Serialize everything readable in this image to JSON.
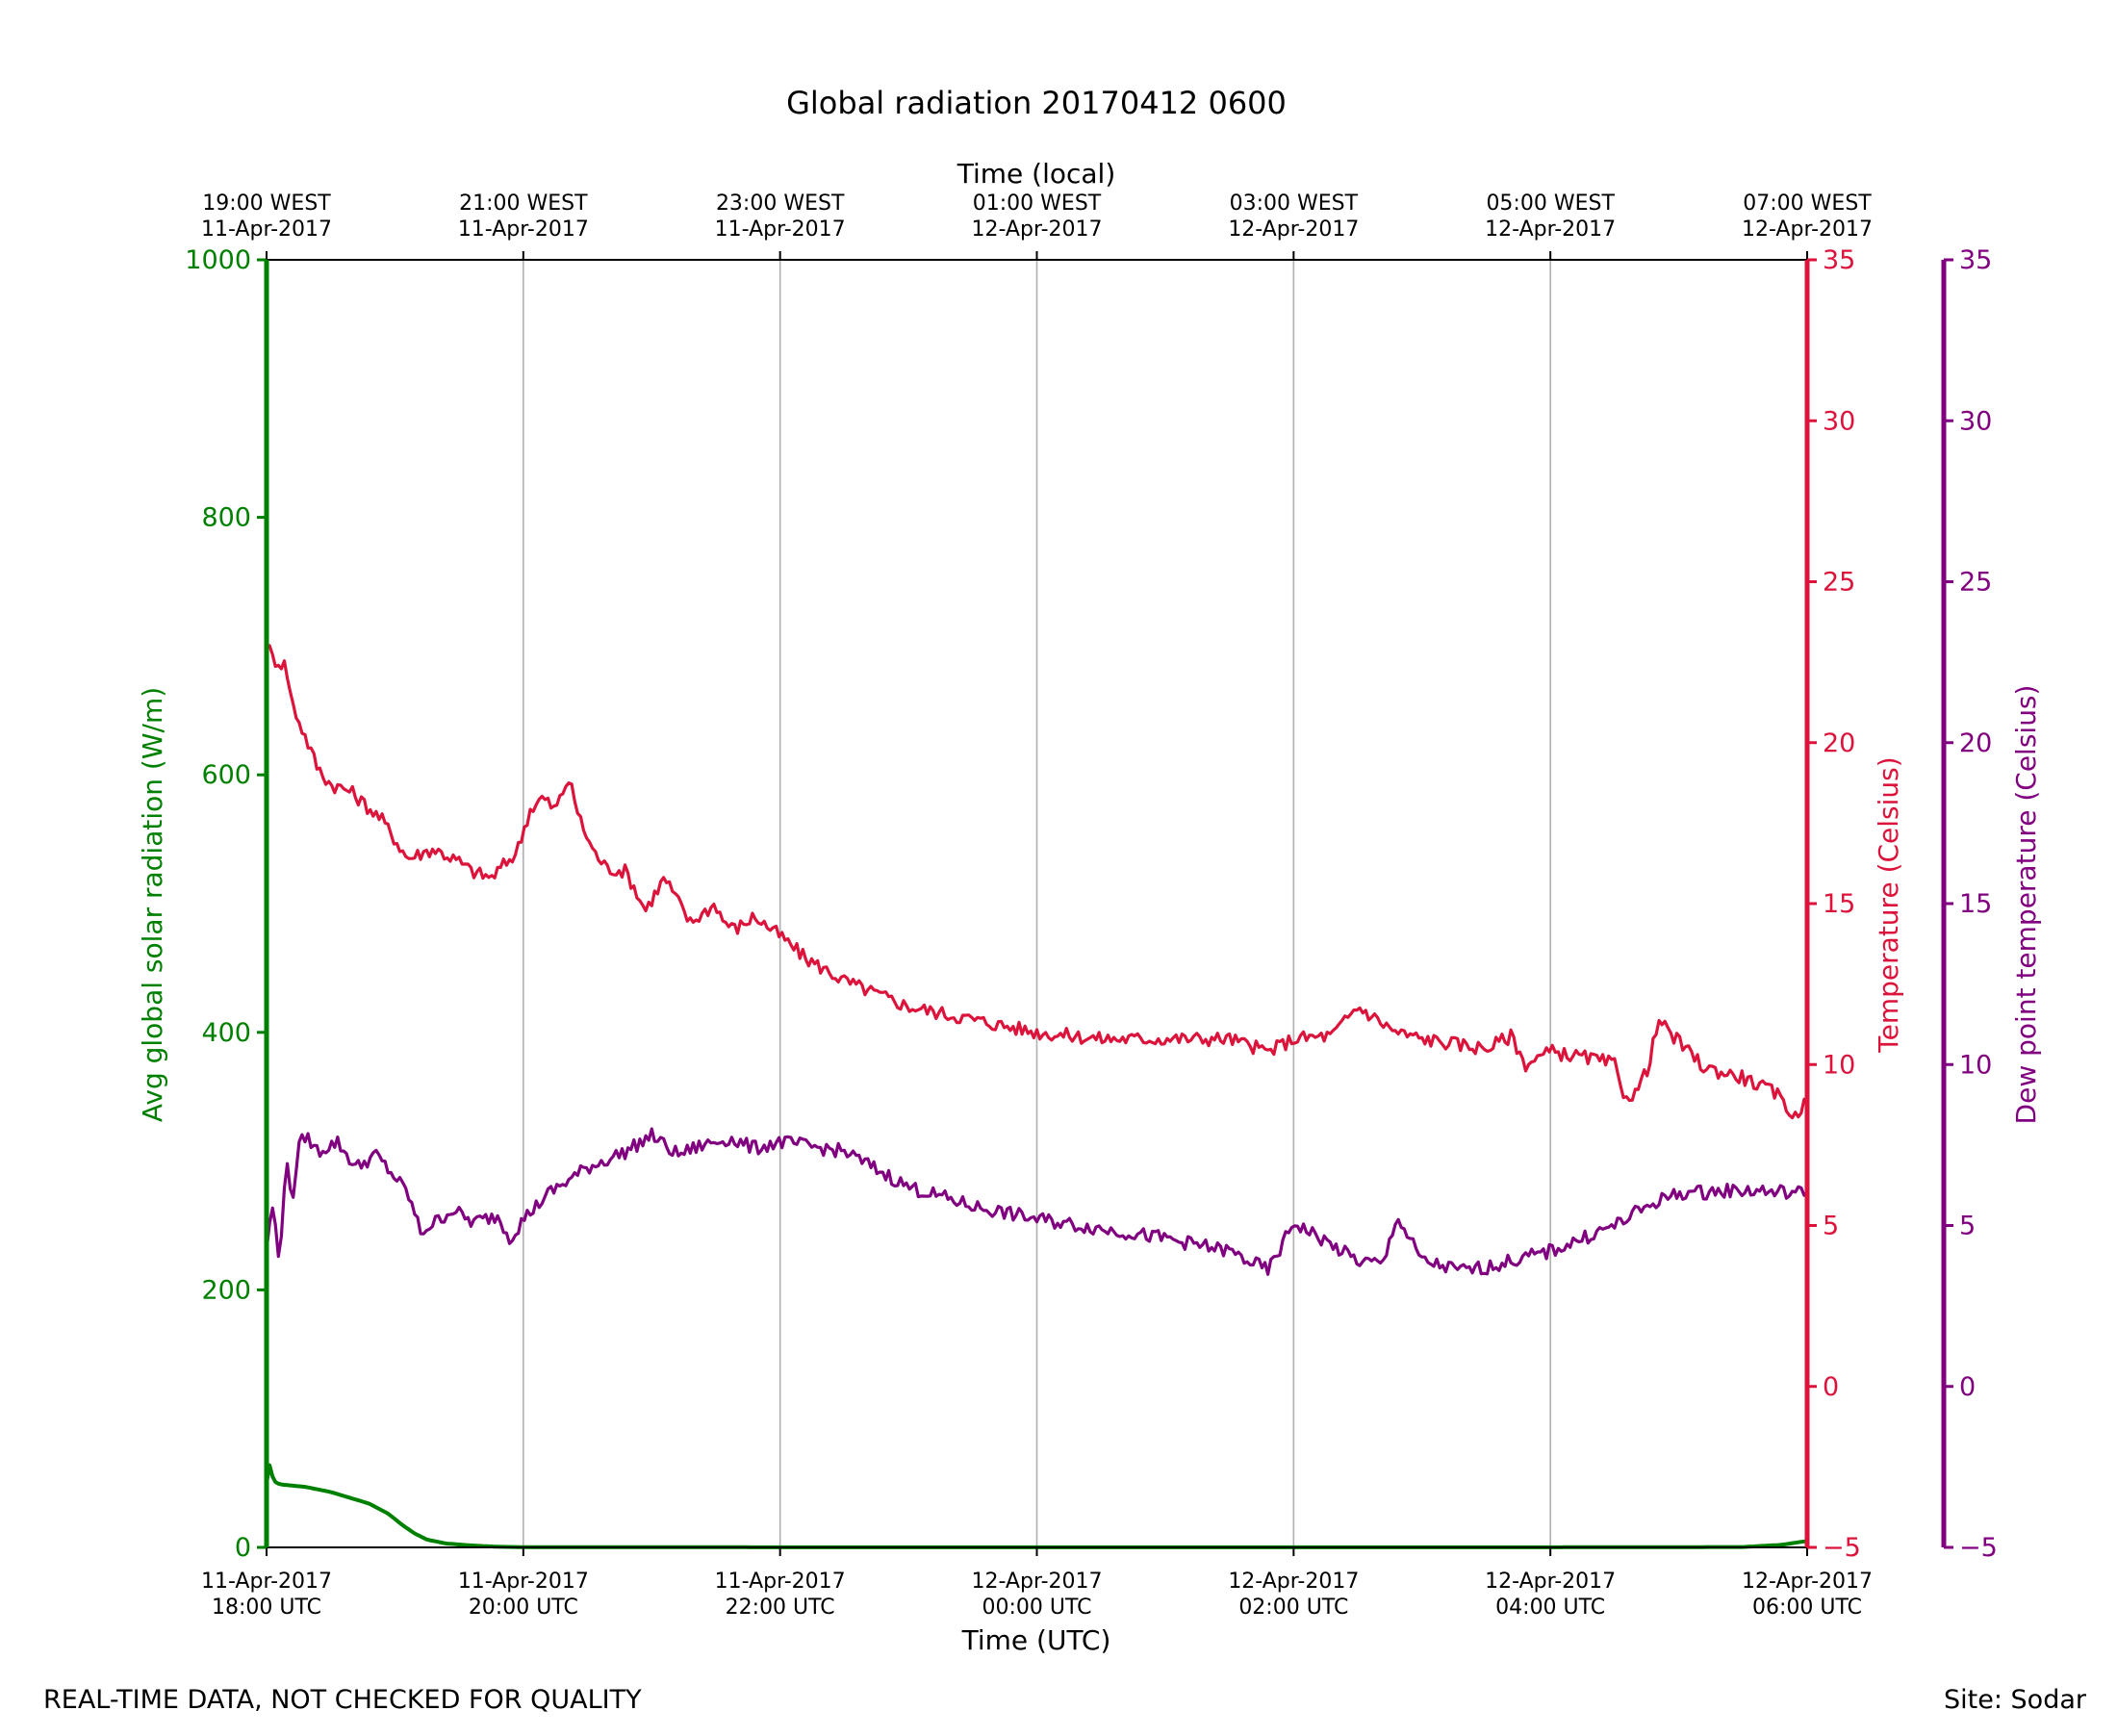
{
  "chart_data": {
    "type": "line",
    "title": "Global radiation 20170412 0600",
    "xlabel": "Time (UTC)",
    "x2label": "Time (local)",
    "x_range": [
      "2017-04-11 18:00 UTC",
      "2017-04-12 06:00 UTC"
    ],
    "grid": "vertical lines at major x ticks",
    "footer_left": "REAL-TIME DATA, NOT CHECKED FOR QUALITY",
    "footer_right": "Site: Sodar",
    "x_ticks_bottom": [
      {
        "line1": "11-Apr-2017",
        "line2": "18:00 UTC"
      },
      {
        "line1": "11-Apr-2017",
        "line2": "20:00 UTC"
      },
      {
        "line1": "11-Apr-2017",
        "line2": "22:00 UTC"
      },
      {
        "line1": "12-Apr-2017",
        "line2": "00:00 UTC"
      },
      {
        "line1": "12-Apr-2017",
        "line2": "02:00 UTC"
      },
      {
        "line1": "12-Apr-2017",
        "line2": "04:00 UTC"
      },
      {
        "line1": "12-Apr-2017",
        "line2": "06:00 UTC"
      }
    ],
    "x_ticks_top": [
      {
        "line1": "19:00 WEST",
        "line2": "11-Apr-2017"
      },
      {
        "line1": "21:00 WEST",
        "line2": "11-Apr-2017"
      },
      {
        "line1": "23:00 WEST",
        "line2": "11-Apr-2017"
      },
      {
        "line1": "01:00 WEST",
        "line2": "12-Apr-2017"
      },
      {
        "line1": "03:00 WEST",
        "line2": "12-Apr-2017"
      },
      {
        "line1": "05:00 WEST",
        "line2": "12-Apr-2017"
      },
      {
        "line1": "07:00 WEST",
        "line2": "12-Apr-2017"
      }
    ],
    "axes": [
      {
        "id": "radiation",
        "label": "Avg global solar radiation (W/m)",
        "color": "#008000",
        "ylim": [
          0,
          1000
        ],
        "ticks": [
          "0",
          "200",
          "400",
          "600",
          "800",
          "1000"
        ]
      },
      {
        "id": "temperature",
        "label": "Temperature (Celsius)",
        "color": "#dc143c",
        "ylim": [
          -5,
          35
        ],
        "ticks": [
          "−5",
          "0",
          "5",
          "10",
          "15",
          "20",
          "25",
          "30",
          "35"
        ]
      },
      {
        "id": "dewpoint",
        "label": "Dew point temperature (Celsius)",
        "color": "#800080",
        "ylim": [
          -5,
          35
        ],
        "ticks": [
          "−5",
          "0",
          "5",
          "10",
          "15",
          "20",
          "25",
          "30",
          "35"
        ]
      }
    ],
    "series": [
      {
        "axis": "radiation",
        "color": "#008000",
        "x_hours_after_1800_utc": [
          0,
          0.03,
          0.05,
          0.1,
          0.3,
          0.5,
          0.6,
          0.8,
          0.95,
          1.05,
          1.15,
          1.25,
          1.4,
          1.6,
          1.8,
          2,
          4,
          6,
          8,
          10,
          11.5,
          11.8,
          12
        ],
        "values": [
          50,
          68,
          52,
          49,
          47,
          43,
          40,
          34,
          26,
          18,
          11,
          6,
          3,
          1.5,
          0.5,
          0.2,
          0.1,
          0.1,
          0.1,
          0.1,
          0.3,
          2,
          5
        ]
      },
      {
        "axis": "temperature",
        "color": "#dc143c",
        "x_hours_after_1800_utc": [
          0,
          0.05,
          0.15,
          0.2,
          0.3,
          0.4,
          0.5,
          0.65,
          0.9,
          1.1,
          1.3,
          1.5,
          1.6,
          1.75,
          1.85,
          1.95,
          2.05,
          2.15,
          2.25,
          2.35,
          2.45,
          2.55,
          2.65,
          2.8,
          2.95,
          3.1,
          3.3,
          3.5,
          3.55,
          3.65,
          3.8,
          4,
          4.2,
          4.5,
          5,
          5.5,
          6,
          6.5,
          7,
          7.5,
          7.8,
          8,
          8.3,
          8.5,
          8.8,
          9,
          9.5,
          9.7,
          9.8,
          10,
          10.3,
          10.5,
          10.55,
          10.65,
          10.75,
          10.85,
          10.9,
          11.2,
          11.5,
          11.7,
          11.8,
          11.9,
          12
        ],
        "values": [
          23.1,
          22.6,
          22.4,
          21.2,
          20.2,
          19.2,
          18.7,
          18.5,
          17.6,
          16.4,
          16.7,
          16.3,
          16.0,
          15.8,
          16.2,
          16.6,
          17.9,
          18.3,
          17.9,
          18.9,
          17.5,
          16.6,
          16.1,
          16.0,
          14.8,
          15.8,
          14.4,
          15.0,
          14.5,
          14.2,
          14.6,
          14.0,
          13.3,
          12.6,
          11.8,
          11.4,
          11.0,
          10.8,
          10.8,
          10.8,
          10.4,
          10.8,
          10.9,
          11.8,
          11.0,
          10.8,
          10.5,
          10.9,
          10.0,
          10.4,
          10.2,
          10.0,
          9.2,
          9.0,
          9.8,
          11.4,
          11.1,
          9.9,
          9.6,
          9.2,
          9.0,
          8.3,
          9.0
        ]
      },
      {
        "axis": "dewpoint",
        "color": "#800080",
        "x_hours_after_1800_utc": [
          0,
          0.05,
          0.1,
          0.12,
          0.15,
          0.2,
          0.25,
          0.3,
          0.4,
          0.55,
          0.7,
          0.85,
          1,
          1.1,
          1.2,
          1.35,
          1.45,
          1.6,
          1.8,
          1.9,
          2,
          2.2,
          2.5,
          2.8,
          3.0,
          3.2,
          3.4,
          3.6,
          3.8,
          4,
          4.5,
          5,
          5.5,
          6,
          6.5,
          7,
          7.5,
          7.8,
          7.9,
          8,
          8.5,
          8.7,
          8.8,
          9,
          9.3,
          9.5,
          10,
          10.5,
          10.8,
          11,
          11.5,
          12
        ],
        "values": [
          4.3,
          5.7,
          3.7,
          5.2,
          7.0,
          5.8,
          7.4,
          7.8,
          7.3,
          7.6,
          6.8,
          7.2,
          6.5,
          6.0,
          4.8,
          5.2,
          5.5,
          5.1,
          5.3,
          4.6,
          5.2,
          6.0,
          6.8,
          7.3,
          7.8,
          7.2,
          7.5,
          7.7,
          7.4,
          7.6,
          7.3,
          6.2,
          5.6,
          5.2,
          4.9,
          4.6,
          4.2,
          3.6,
          4.3,
          5.1,
          3.9,
          3.8,
          5.3,
          3.9,
          3.6,
          3.7,
          4.2,
          5.0,
          5.7,
          6.0,
          6.1,
          6.0
        ]
      }
    ]
  }
}
